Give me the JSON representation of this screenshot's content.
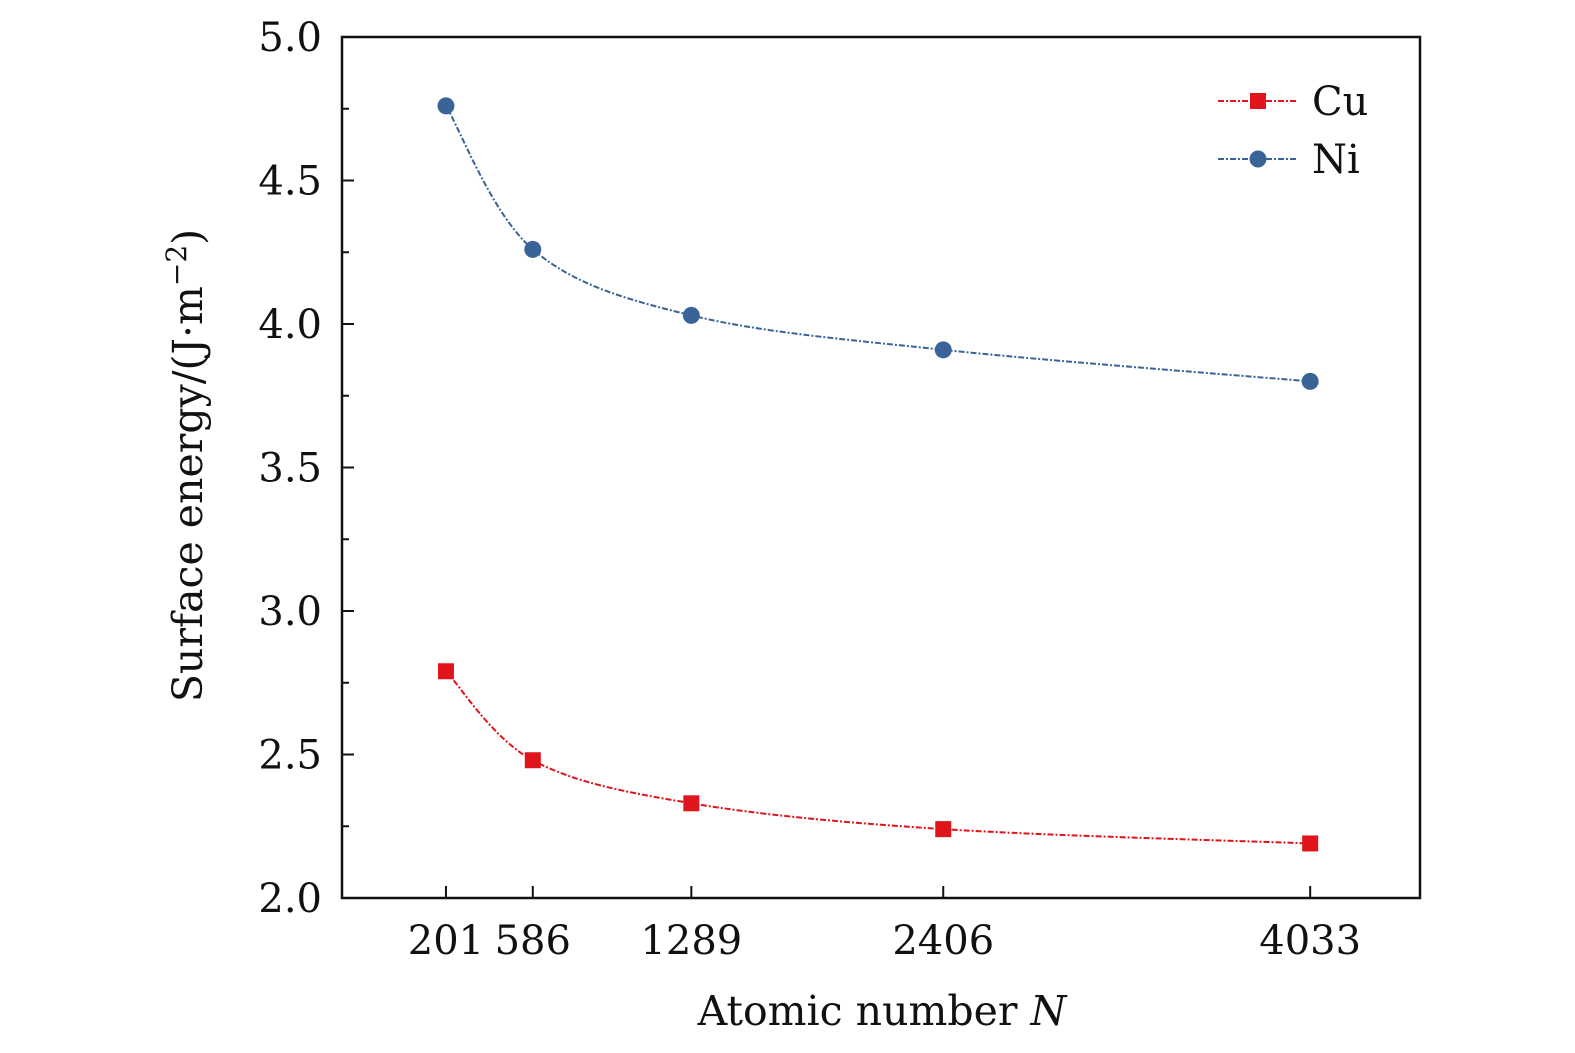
{
  "chart_data": {
    "type": "line",
    "title": "",
    "xlabel": "Atomic number ",
    "xlabel_var": "N",
    "ylabel": "Surface energy/(J·m",
    "ylabel_exp": "−2",
    "ylabel_close": ")",
    "x": [
      201,
      586,
      1289,
      2406,
      4033
    ],
    "x_tick_labels": [
      "201",
      "586",
      "1289",
      "2406",
      "4033"
    ],
    "xlim": [
      -260,
      4520
    ],
    "ylim": [
      2.0,
      5.0
    ],
    "y_ticks": [
      2.0,
      2.5,
      3.0,
      3.5,
      4.0,
      4.5,
      5.0
    ],
    "y_tick_labels": [
      "2.0",
      "2.5",
      "3.0",
      "3.5",
      "4.0",
      "4.5",
      "5.0"
    ],
    "grid": false,
    "legend_position": "top-right",
    "series": [
      {
        "name": "Cu",
        "marker": "square",
        "color": "#e0141b",
        "values": [
          2.79,
          2.48,
          2.33,
          2.24,
          2.19
        ]
      },
      {
        "name": "Ni",
        "marker": "circle",
        "color": "#3a6497",
        "values": [
          4.76,
          4.26,
          4.03,
          3.91,
          3.8
        ]
      }
    ]
  }
}
